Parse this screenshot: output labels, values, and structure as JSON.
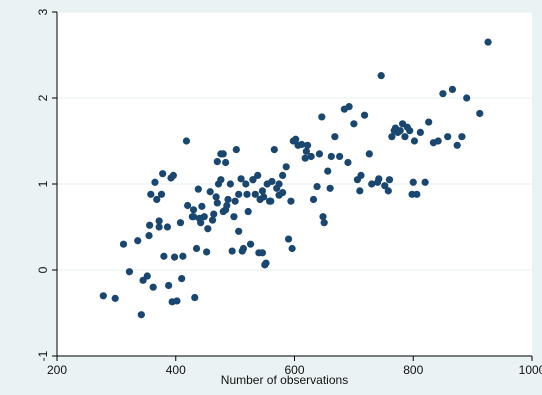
{
  "chart_data": {
    "type": "scatter",
    "title": "",
    "xlabel": "Number of observations",
    "ylabel": "",
    "xlim": [
      200,
      1000
    ],
    "ylim": [
      -1,
      3
    ],
    "xticks": [
      200,
      400,
      600,
      800,
      1000
    ],
    "xtick_labels": [
      "200",
      "400",
      "600",
      "800",
      "1000"
    ],
    "yticks": [
      -1,
      0,
      1,
      2,
      3
    ],
    "ytick_labels": [
      "-1",
      "0",
      "1",
      "2",
      "3"
    ],
    "grid": true,
    "background_color": "#eaf2f3",
    "plot_color": "#ffffff",
    "marker_color": "#1a476f",
    "series": [
      {
        "x": [
          278,
          298,
          312,
          322,
          336,
          342,
          345,
          352,
          355,
          358,
          362,
          365,
          368,
          372,
          378,
          386,
          388,
          392,
          394,
          398,
          402,
          410,
          412,
          420,
          428,
          432,
          435,
          438,
          442,
          448,
          452,
          458,
          462,
          468,
          472,
          476,
          480,
          484,
          488,
          492,
          495,
          498,
          502,
          506,
          510,
          514,
          518,
          522,
          526,
          530,
          534,
          538,
          542,
          546,
          550,
          554,
          558,
          562,
          566,
          570,
          574,
          580,
          586,
          590,
          594,
          598,
          602,
          606,
          612,
          618,
          622,
          628,
          632,
          638,
          642,
          646,
          650,
          656,
          662,
          668,
          676,
          684,
          692,
          700,
          706,
          712,
          718,
          726,
          730,
          740,
          746,
          752,
          758,
          764,
          768,
          770,
          774,
          778,
          782,
          786,
          790,
          794,
          798,
          802,
          806,
          812,
          820,
          826,
          834,
          842,
          850,
          858,
          866,
          874,
          882,
          890,
          912,
          926,
          506,
          512,
          480,
          470,
          440,
          418,
          396,
          540,
          552,
          380,
          372,
          660,
          690,
          742,
          760,
          800,
          560,
          530,
          500,
          476,
          430,
          464,
          546,
          596,
          648,
          710,
          620,
          574,
          454,
          486,
          520,
          548,
          356,
          376,
          408,
          430,
          470,
          444,
          484,
          580
        ],
        "y": [
          -0.3,
          -0.33,
          0.3,
          -0.02,
          0.34,
          -0.52,
          -0.12,
          -0.07,
          0.4,
          0.88,
          -0.2,
          1.02,
          0.82,
          0.57,
          1.12,
          0.5,
          -0.18,
          1.07,
          -0.37,
          0.15,
          -0.36,
          -0.1,
          0.16,
          0.75,
          0.62,
          -0.32,
          0.25,
          0.94,
          0.55,
          0.62,
          0.21,
          0.91,
          0.58,
          0.85,
          1.0,
          1.35,
          0.68,
          1.25,
          0.82,
          1.0,
          0.22,
          0.62,
          1.4,
          0.88,
          1.06,
          0.25,
          1.0,
          0.68,
          0.3,
          1.05,
          0.88,
          1.1,
          0.82,
          0.2,
          0.06,
          1.0,
          0.8,
          1.03,
          1.4,
          0.95,
          0.87,
          1.1,
          1.2,
          0.36,
          0.8,
          1.5,
          1.52,
          1.45,
          1.46,
          1.3,
          1.45,
          1.32,
          0.82,
          0.97,
          1.35,
          1.78,
          0.55,
          1.15,
          1.32,
          1.55,
          1.32,
          1.87,
          1.9,
          1.7,
          1.05,
          1.1,
          1.8,
          1.35,
          1.0,
          1.02,
          2.26,
          0.98,
          0.92,
          1.55,
          1.62,
          1.65,
          1.6,
          1.62,
          1.7,
          1.55,
          1.66,
          1.62,
          0.88,
          1.5,
          0.88,
          1.6,
          1.02,
          1.72,
          1.48,
          1.5,
          2.05,
          1.55,
          2.1,
          1.45,
          1.55,
          2.0,
          1.82,
          2.65,
          0.45,
          0.22,
          1.35,
          1.26,
          0.6,
          1.5,
          1.1,
          0.2,
          0.08,
          0.16,
          0.5,
          0.95,
          1.25,
          1.06,
          1.05,
          1.02,
          0.8,
          1.05,
          0.8,
          1.05,
          0.7,
          0.65,
          0.92,
          0.25,
          0.62,
          0.92,
          1.38,
          1.0,
          0.48,
          0.75,
          0.88,
          0.85,
          0.52,
          0.88,
          0.55,
          0.62,
          0.78,
          0.74,
          0.7,
          0.9
        ]
      }
    ]
  }
}
